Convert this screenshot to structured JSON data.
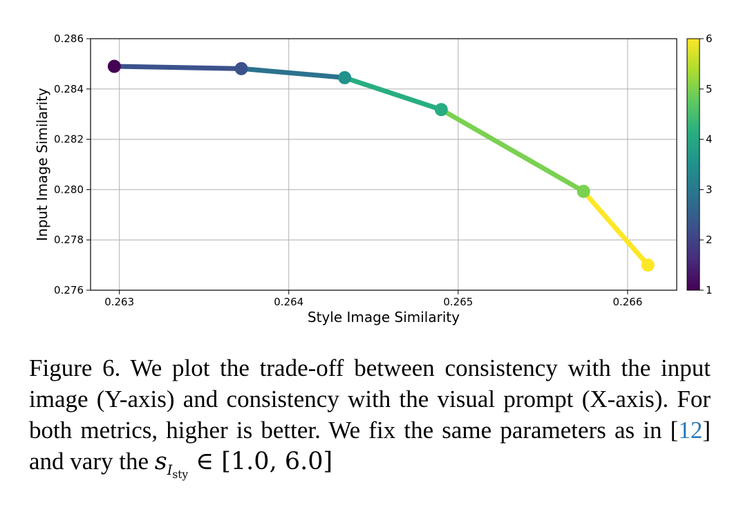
{
  "chart_data": {
    "type": "line",
    "xlabel": "Style Image Similarity",
    "ylabel": "Input Image Similarity",
    "xlim": [
      0.26283,
      0.26629
    ],
    "ylim": [
      0.276,
      0.286
    ],
    "xticks": [
      "0.263",
      "0.264",
      "0.265",
      "0.266"
    ],
    "xtick_values": [
      0.263,
      0.264,
      0.265,
      0.266
    ],
    "yticks": [
      "0.276",
      "0.278",
      "0.280",
      "0.282",
      "0.284",
      "0.286"
    ],
    "ytick_values": [
      0.276,
      0.278,
      0.28,
      0.282,
      0.284,
      0.286
    ],
    "grid": true,
    "colormap": "viridis",
    "colorbar": {
      "ticks": [
        "1",
        "2",
        "3",
        "4",
        "5",
        "6"
      ],
      "tick_values": [
        1,
        2,
        3,
        4,
        5,
        6
      ],
      "range": [
        1,
        6
      ]
    },
    "points": [
      {
        "x": 0.26297,
        "y": 0.2849,
        "c": 1,
        "color": "#440154"
      },
      {
        "x": 0.26372,
        "y": 0.28481,
        "c": 2,
        "color": "#3b528b"
      },
      {
        "x": 0.26433,
        "y": 0.28445,
        "c": 3,
        "color": "#21918c"
      },
      {
        "x": 0.2649,
        "y": 0.28318,
        "c": 4,
        "color": "#27ad81"
      },
      {
        "x": 0.26574,
        "y": 0.27993,
        "c": 5,
        "color": "#7ad151"
      },
      {
        "x": 0.26612,
        "y": 0.277,
        "c": 6,
        "color": "#fde725"
      }
    ],
    "segment_colors": [
      "#3b528b",
      "#2c728e",
      "#28ae80",
      "#7ad151",
      "#fde725"
    ]
  },
  "caption": {
    "p1": "Figure 6. We plot the trade-off between consistency with the input image (Y-axis) and consistency with the visual prompt (X-axis). For both metrics, higher is better. We fix the same parameters as in [",
    "cite": "12",
    "p2": "] and vary the ",
    "math_s": "s",
    "math_I": "I",
    "math_sty": "sty",
    "math_tail": " ∈ [1.0, 6.0]"
  }
}
